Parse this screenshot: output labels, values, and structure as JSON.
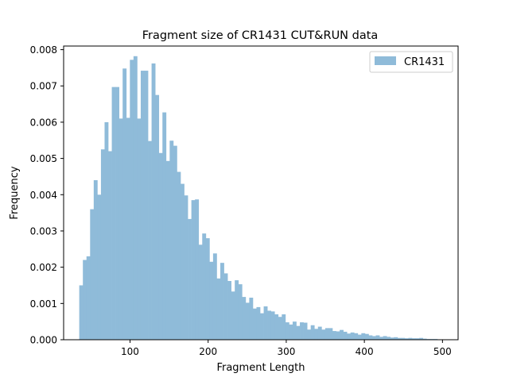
{
  "chart_data": {
    "type": "bar",
    "title": "Fragment size of CR1431 CUT&RUN data",
    "xlabel": "Fragment Length",
    "ylabel": "Frequency",
    "xlim": [
      15,
      520
    ],
    "ylim": [
      0,
      0.0081
    ],
    "bin_width": 4.63,
    "bin_starts": [
      35.0,
      39.63,
      44.26,
      48.89,
      53.52,
      58.15,
      62.78,
      67.41,
      72.04,
      76.67,
      81.3,
      85.93,
      90.56,
      95.19,
      99.82,
      104.45,
      109.08,
      113.71,
      118.34,
      122.97,
      127.6,
      132.23,
      136.86,
      141.49,
      146.12,
      150.75,
      155.38,
      160.01,
      164.64,
      169.27,
      173.9,
      178.53,
      183.16,
      187.79,
      192.42,
      197.05,
      201.68,
      206.31,
      210.94,
      215.57,
      220.2,
      224.83,
      229.46,
      234.09,
      238.72,
      243.35,
      247.98,
      252.61,
      257.24,
      261.87,
      266.5,
      271.13,
      275.76,
      280.39,
      285.02,
      289.65,
      294.28,
      298.91,
      303.54,
      308.17,
      312.8,
      317.43,
      322.06,
      326.69,
      331.32,
      335.95,
      340.58,
      345.21,
      349.84,
      354.47,
      359.1,
      363.73,
      368.36,
      372.99,
      377.62,
      382.25,
      386.88,
      391.51,
      396.14,
      400.77,
      405.4,
      410.03,
      414.66,
      419.29,
      423.92,
      428.55,
      433.18,
      437.81,
      442.44,
      447.07,
      451.7,
      456.33,
      460.96,
      465.59,
      470.22,
      474.85,
      479.48,
      484.11,
      488.74,
      493.37
    ],
    "values": [
      0.0015,
      0.0022,
      0.0023,
      0.0036,
      0.0044,
      0.004,
      0.00525,
      0.006,
      0.0052,
      0.00697,
      0.00697,
      0.0061,
      0.00748,
      0.00612,
      0.00772,
      0.00782,
      0.0061,
      0.00742,
      0.00742,
      0.00548,
      0.00762,
      0.00675,
      0.00515,
      0.00627,
      0.00493,
      0.00549,
      0.00535,
      0.00463,
      0.0043,
      0.00398,
      0.00333,
      0.00385,
      0.00387,
      0.00262,
      0.00293,
      0.0028,
      0.00215,
      0.00238,
      0.00169,
      0.00212,
      0.00183,
      0.00162,
      0.00133,
      0.00164,
      0.00153,
      0.00118,
      0.00102,
      0.00116,
      0.00086,
      0.0009,
      0.00073,
      0.00092,
      0.0008,
      0.00078,
      0.0007,
      0.00063,
      0.0007,
      0.00048,
      0.00042,
      0.0005,
      0.00038,
      0.00048,
      0.00047,
      0.00028,
      0.0004,
      0.0003,
      0.00036,
      0.00028,
      0.00032,
      0.00032,
      0.00024,
      0.00023,
      0.00027,
      0.00022,
      0.00017,
      0.0002,
      0.00018,
      0.00014,
      0.00018,
      0.00016,
      0.00012,
      0.0001,
      0.00012,
      8e-05,
      0.0001,
      8e-05,
      6e-05,
      7e-05,
      5e-05,
      5e-05,
      4e-05,
      5e-05,
      4e-05,
      4e-05,
      5e-05,
      3e-05,
      2e-05,
      2e-05,
      2e-05,
      1e-05
    ],
    "series": [
      {
        "name": "CR1431",
        "color": "#8fbbd9"
      }
    ],
    "xticks": [
      100,
      200,
      300,
      400,
      500
    ],
    "xtick_labels": [
      "100",
      "200",
      "300",
      "400",
      "500"
    ],
    "yticks": [
      0.0,
      0.001,
      0.002,
      0.003,
      0.004,
      0.005,
      0.006,
      0.007,
      0.008
    ],
    "ytick_labels": [
      "0.000",
      "0.001",
      "0.002",
      "0.003",
      "0.004",
      "0.005",
      "0.006",
      "0.007",
      "0.008"
    ],
    "grid": false,
    "legend_position": "top-right"
  }
}
